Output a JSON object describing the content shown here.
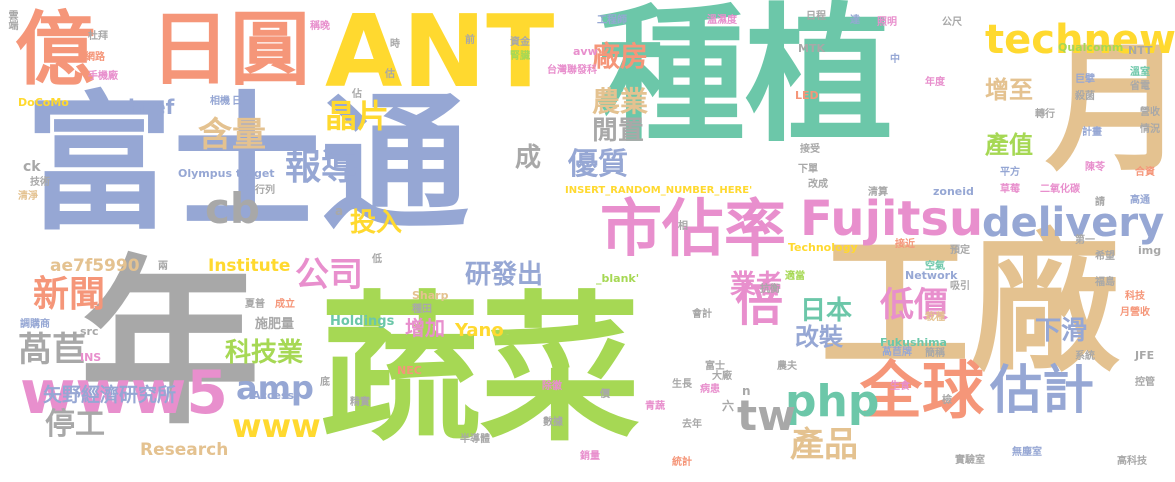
{
  "words": [
    {
      "text": "種植",
      "color": "#6cc7a9"
    },
    {
      "text": "富士通",
      "color": "#96a7d4"
    },
    {
      "text": "年",
      "color": "#a8a8a8"
    },
    {
      "text": "蔬菜",
      "color": "#a6d854"
    },
    {
      "text": "工廠",
      "color": "#e4c290"
    },
    {
      "text": "月",
      "color": "#e4c290"
    },
    {
      "text": "ANT",
      "color": "#ffd92f"
    },
    {
      "text": "億",
      "color": "#f59679"
    },
    {
      "text": "日圓",
      "color": "#f59679"
    },
    {
      "text": "市佔率",
      "color": "#e88fcd"
    },
    {
      "text": "Fujitsu",
      "color": "#e88fcd"
    },
    {
      "text": "全球",
      "color": "#f59679"
    },
    {
      "text": "估計",
      "color": "#96a7d4"
    },
    {
      "text": "www5",
      "color": "#e88fcd"
    },
    {
      "text": "technews",
      "color": "#ffd92f"
    },
    {
      "text": "delivery",
      "color": "#96a7d4"
    },
    {
      "text": "php",
      "color": "#6cc7a9"
    },
    {
      "text": "倍",
      "color": "#e88fcd"
    },
    {
      "text": "報導",
      "color": "#96a7d4"
    },
    {
      "text": "晶片",
      "color": "#ffd92f"
    },
    {
      "text": "cb",
      "color": "#a8a8a8"
    },
    {
      "text": "含量",
      "color": "#e4c290"
    },
    {
      "text": "公司",
      "color": "#e88fcd"
    },
    {
      "text": "新聞",
      "color": "#f59679"
    },
    {
      "text": "萵苣",
      "color": "#a8a8a8"
    },
    {
      "text": "amp",
      "color": "#96a7d4"
    },
    {
      "text": "www",
      "color": "#ffd92f"
    },
    {
      "text": "tw",
      "color": "#a8a8a8"
    },
    {
      "text": "產品",
      "color": "#e4c290"
    },
    {
      "text": "低價",
      "color": "#e88fcd"
    },
    {
      "text": "研發出",
      "color": "#96a7d4"
    },
    {
      "text": "廠房",
      "color": "#f59679"
    },
    {
      "text": "農業",
      "color": "#e4c290"
    },
    {
      "text": "優質",
      "color": "#96a7d4"
    },
    {
      "text": "閒置",
      "color": "#a8a8a8"
    },
    {
      "text": "成",
      "color": "#a8a8a8"
    },
    {
      "text": "增至",
      "color": "#e4c290"
    },
    {
      "text": "產值",
      "color": "#a6d854"
    },
    {
      "text": "下滑",
      "color": "#96a7d4"
    },
    {
      "text": "日本",
      "color": "#6cc7a9"
    },
    {
      "text": "業者",
      "color": "#e88fcd"
    },
    {
      "text": "改裝",
      "color": "#96a7d4"
    },
    {
      "text": "投入",
      "color": "#ffd92f"
    },
    {
      "text": "科技業",
      "color": "#a6d854"
    },
    {
      "text": "增加",
      "color": "#e88fcd"
    },
    {
      "text": "停工",
      "color": "#a8a8a8"
    },
    {
      "text": "矢野經濟研究所",
      "color": "#96a7d4"
    },
    {
      "text": "href",
      "color": "#96a7d4"
    },
    {
      "text": "Institute",
      "color": "#ffd92f"
    },
    {
      "text": "Research",
      "color": "#e4c290"
    },
    {
      "text": "Yano",
      "color": "#ffd92f"
    },
    {
      "text": "ae7f5990",
      "color": "#e4c290"
    },
    {
      "text": "Holdings",
      "color": "#6cc7a9"
    },
    {
      "text": "施肥量",
      "color": "#a8a8a8"
    },
    {
      "text": "INSERT_RANDOM_NUMBER_HERE'",
      "color": "#ffd92f"
    },
    {
      "text": "Olympus target",
      "color": "#96a7d4"
    },
    {
      "text": "_blank'",
      "color": "#a6d854"
    },
    {
      "text": "Technology",
      "color": "#ffd92f"
    },
    {
      "text": "Network",
      "color": "#96a7d4"
    },
    {
      "text": "Fukushima",
      "color": "#6cc7a9"
    },
    {
      "text": "Qualcomm",
      "color": "#a6d854"
    },
    {
      "text": "MTK",
      "color": "#a8a8a8"
    },
    {
      "text": "DoCoMo",
      "color": "#ffd92f"
    },
    {
      "text": "NTT",
      "color": "#a8a8a8"
    },
    {
      "text": "JFE",
      "color": "#a8a8a8"
    },
    {
      "text": "NEC",
      "color": "#f59679"
    },
    {
      "text": "Sharp",
      "color": "#e4c290"
    },
    {
      "text": "Access",
      "color": "#96a7d4"
    },
    {
      "text": "LED",
      "color": "#f59679"
    },
    {
      "text": "INS",
      "color": "#e88fcd"
    },
    {
      "text": "src",
      "color": "#a8a8a8"
    },
    {
      "text": "img",
      "color": "#a8a8a8"
    },
    {
      "text": "ck",
      "color": "#a8a8a8"
    },
    {
      "text": "zoneid",
      "color": "#96a7d4"
    },
    {
      "text": "avw",
      "color": "#e88fcd"
    },
    {
      "text": "台灣聯發科",
      "color": "#e88fcd"
    },
    {
      "text": "工程師",
      "color": "#96a7d4"
    },
    {
      "text": "溫濕度",
      "color": "#e88fcd"
    },
    {
      "text": "日程",
      "color": "#a8a8a8"
    },
    {
      "text": "達",
      "color": "#96a7d4"
    },
    {
      "text": "照明",
      "color": "#e88fcd"
    },
    {
      "text": "公尺",
      "color": "#a8a8a8"
    },
    {
      "text": "溫室",
      "color": "#6cc7a9"
    },
    {
      "text": "巨擘",
      "color": "#96a7d4"
    },
    {
      "text": "省電",
      "color": "#a8a8a8"
    },
    {
      "text": "雲端",
      "color": "#a8a8a8"
    },
    {
      "text": "杜拜",
      "color": "#a8a8a8"
    },
    {
      "text": "網路",
      "color": "#f59679"
    },
    {
      "text": "手機廠",
      "color": "#e88fcd"
    },
    {
      "text": "相機",
      "color": "#96a7d4"
    },
    {
      "text": "稱晚",
      "color": "#e88fcd"
    },
    {
      "text": "時",
      "color": "#a8a8a8"
    },
    {
      "text": "前",
      "color": "#a8a8a8"
    },
    {
      "text": "資金",
      "color": "#a8a8a8"
    },
    {
      "text": "腎臟",
      "color": "#a6d854"
    },
    {
      "text": "佔",
      "color": "#a8a8a8"
    },
    {
      "text": "日",
      "color": "#96a7d4"
    },
    {
      "text": "中",
      "color": "#96a7d4"
    },
    {
      "text": "年度",
      "color": "#e88fcd"
    },
    {
      "text": "殺菌",
      "color": "#a8a8a8"
    },
    {
      "text": "轉行",
      "color": "#a8a8a8"
    },
    {
      "text": "營收",
      "color": "#a8a8a8"
    },
    {
      "text": "情況",
      "color": "#a8a8a8"
    },
    {
      "text": "計畫",
      "color": "#96a7d4"
    },
    {
      "text": "接受",
      "color": "#a8a8a8"
    },
    {
      "text": "下單",
      "color": "#a8a8a8"
    },
    {
      "text": "改成",
      "color": "#a8a8a8"
    },
    {
      "text": "平方",
      "color": "#96a7d4"
    },
    {
      "text": "陳苓",
      "color": "#e88fcd"
    },
    {
      "text": "清算",
      "color": "#a8a8a8"
    },
    {
      "text": "草莓",
      "color": "#e88fcd"
    },
    {
      "text": "二氧化碳",
      "color": "#e88fcd"
    },
    {
      "text": "合資",
      "color": "#f59679"
    },
    {
      "text": "請",
      "color": "#a8a8a8"
    },
    {
      "text": "高通",
      "color": "#96a7d4"
    },
    {
      "text": "第一",
      "color": "#a8a8a8"
    },
    {
      "text": "希望",
      "color": "#a8a8a8"
    },
    {
      "text": "預定",
      "color": "#a8a8a8"
    },
    {
      "text": "接近",
      "color": "#f59679"
    },
    {
      "text": "空氣",
      "color": "#6cc7a9"
    },
    {
      "text": "吸引",
      "color": "#a8a8a8"
    },
    {
      "text": "福島",
      "color": "#a8a8a8"
    },
    {
      "text": "科技",
      "color": "#f59679"
    },
    {
      "text": "月營收",
      "color": "#f59679"
    },
    {
      "text": "適當",
      "color": "#a6d854"
    },
    {
      "text": "抗衡",
      "color": "#a8a8a8"
    },
    {
      "text": "栽種",
      "color": "#e4c290"
    },
    {
      "text": "萵苣牌",
      "color": "#96a7d4"
    },
    {
      "text": "簡稱",
      "color": "#a8a8a8"
    },
    {
      "text": "系統",
      "color": "#a8a8a8"
    },
    {
      "text": "控管",
      "color": "#a8a8a8"
    },
    {
      "text": "會計",
      "color": "#a8a8a8"
    },
    {
      "text": "富士",
      "color": "#a8a8a8"
    },
    {
      "text": "大廠",
      "color": "#a8a8a8"
    },
    {
      "text": "農夫",
      "color": "#a8a8a8"
    },
    {
      "text": "生長",
      "color": "#a8a8a8"
    },
    {
      "text": "病患",
      "color": "#e88fcd"
    },
    {
      "text": "生食",
      "color": "#e88fcd"
    },
    {
      "text": "檢",
      "color": "#a8a8a8"
    },
    {
      "text": "六",
      "color": "#a8a8a8"
    },
    {
      "text": "n",
      "color": "#a8a8a8"
    },
    {
      "text": "去年",
      "color": "#a8a8a8"
    },
    {
      "text": "統計",
      "color": "#f59679"
    },
    {
      "text": "實驗室",
      "color": "#a8a8a8"
    },
    {
      "text": "無塵室",
      "color": "#96a7d4"
    },
    {
      "text": "高科技",
      "color": "#a8a8a8"
    },
    {
      "text": "銷量",
      "color": "#e88fcd"
    },
    {
      "text": "數據",
      "color": "#a8a8a8"
    },
    {
      "text": "青蔬",
      "color": "#e88fcd"
    },
    {
      "text": "價",
      "color": "#a8a8a8"
    },
    {
      "text": "除徽",
      "color": "#e88fcd"
    },
    {
      "text": "半導體",
      "color": "#a8a8a8"
    },
    {
      "text": "精實",
      "color": "#a8a8a8"
    },
    {
      "text": "底",
      "color": "#a8a8a8"
    },
    {
      "text": "成立",
      "color": "#f59679"
    },
    {
      "text": "夏普",
      "color": "#a8a8a8"
    },
    {
      "text": "調購商",
      "color": "#96a7d4"
    },
    {
      "text": "種田",
      "color": "#a8a8a8"
    },
    {
      "text": "低",
      "color": "#a8a8a8"
    },
    {
      "text": "兩",
      "color": "#a8a8a8"
    },
    {
      "text": "a",
      "color": "#a8a8a8"
    },
    {
      "text": "相",
      "color": "#a8a8a8"
    },
    {
      "text": "清淨",
      "color": "#e4c290"
    },
    {
      "text": "技術",
      "color": "#a8a8a8"
    },
    {
      "text": "行列",
      "color": "#a8a8a8"
    },
    {
      "text": "估",
      "color": "#a8a8a8"
    }
  ]
}
